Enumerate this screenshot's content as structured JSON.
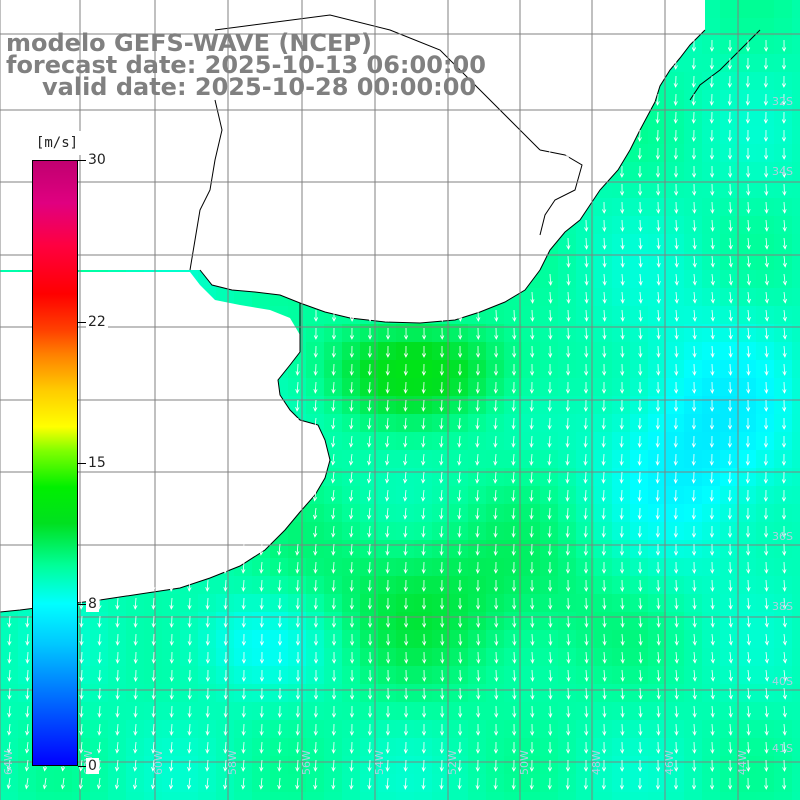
{
  "title": {
    "line1": "modelo GEFS-WAVE (NCEP)",
    "line2": "forecast date: 2025-10-13 06:00:00",
    "line3": "valid date: 2025-10-28 00:00:00"
  },
  "colorbar": {
    "unit": "[m/s]",
    "ticks": [
      "30",
      "22",
      "15",
      "8",
      "0"
    ],
    "tick_values": [
      30,
      22,
      15,
      8,
      0
    ],
    "vmin": 0,
    "vmax": 30
  },
  "map": {
    "variable": "wind speed with direction vectors",
    "land_color": "#ffffff",
    "coastline_color": "#000000",
    "grid_color": "#808080",
    "vector_color": "#ffffff",
    "prevailing_direction": "south-southwest to south",
    "lat_labels_right": [
      "32S",
      "34S",
      "36S",
      "38S",
      "40S",
      "41S"
    ],
    "lon_labels_bottom": [
      "64W",
      "62W",
      "60W",
      "58W",
      "56W",
      "54W",
      "52W",
      "50W",
      "48W",
      "46W",
      "44W",
      "42W"
    ]
  },
  "colors": {
    "title_gray": "#808080",
    "low": "#0000ff",
    "mid_low": "#00ffff",
    "mid": "#00e000",
    "high": "#ffff00",
    "very_high": "#ff0000",
    "max": "#c00070"
  }
}
